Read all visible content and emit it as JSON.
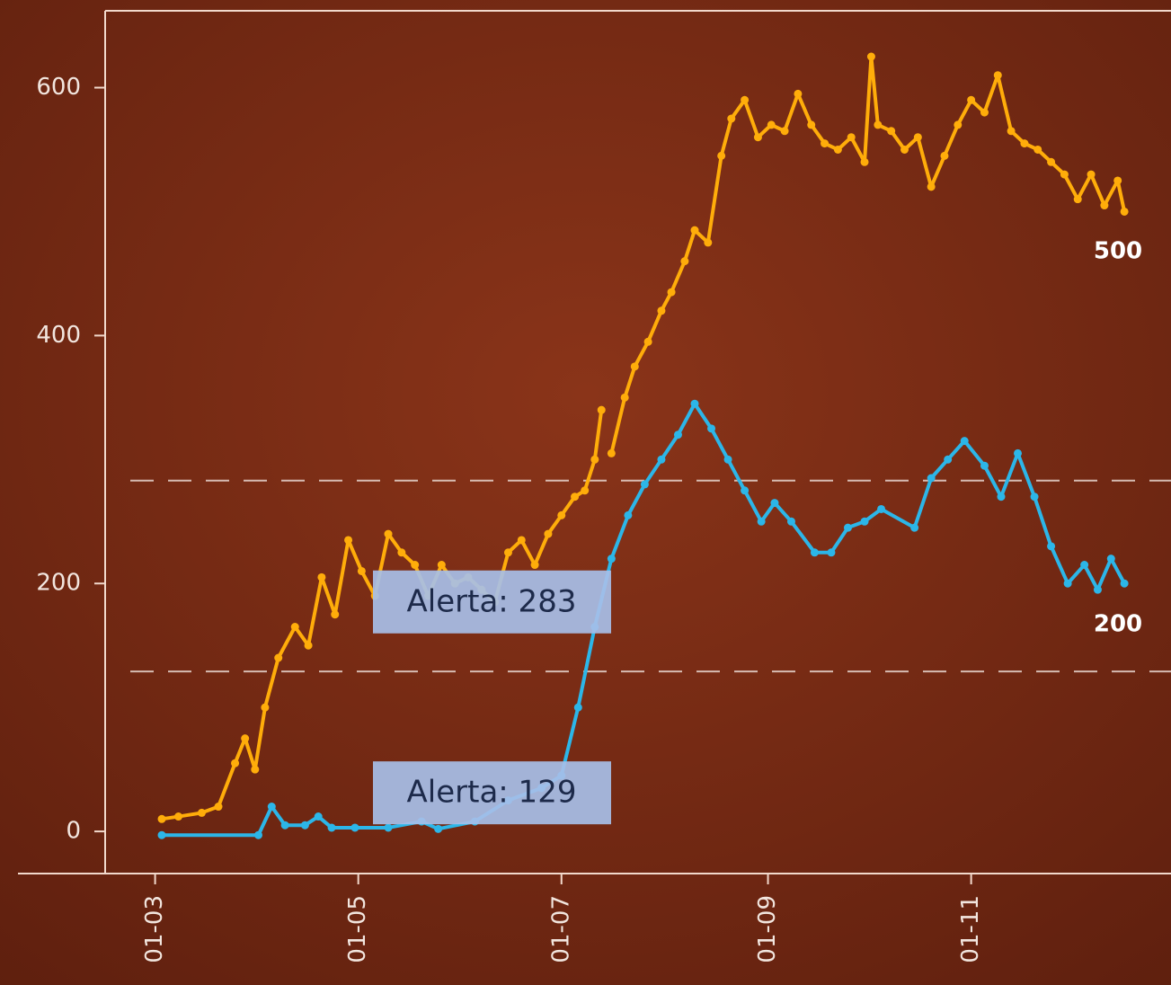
{
  "chart_data": {
    "type": "line",
    "xlim": [
      "14-02",
      "31-12"
    ],
    "xticks": [
      "01-03",
      "01-05",
      "01-07",
      "01-09",
      "01-11"
    ],
    "ylim": [
      -34,
      662
    ],
    "yticks": [
      0,
      200,
      400,
      600
    ],
    "hlines": [
      {
        "value": 283,
        "label": "Alerta: 283"
      },
      {
        "value": 129,
        "label": "Alerta: 129"
      }
    ],
    "annotations": [
      "500",
      "200"
    ],
    "series": [
      {
        "color": "#ffad0a",
        "x": [
          "03-03",
          "08-03",
          "15-03",
          "20-03",
          "25-03",
          "28-03",
          "31-03",
          "03-04",
          "07-04",
          "12-04",
          "16-04",
          "20-04",
          "24-04",
          "28-04",
          "02-05",
          "06-05",
          "10-05",
          "14-05",
          "18-05",
          "22-05",
          "26-05",
          "30-05",
          "03-06",
          "07-06",
          "11-06",
          "15-06",
          "19-06",
          "23-06",
          "27-06",
          "01-07",
          "05-07",
          "08-07",
          "11-07",
          "13-07",
          "14-07",
          "16-07",
          "20-07",
          "23-07",
          "27-07",
          "31-07",
          "03-08",
          "07-08",
          "10-08",
          "14-08",
          "18-08",
          "21-08",
          "25-08",
          "29-08",
          "02-09",
          "06-09",
          "10-09",
          "14-09",
          "18-09",
          "22-09",
          "26-09",
          "30-09",
          "02-10",
          "04-10",
          "08-10",
          "12-10",
          "16-10",
          "20-10",
          "24-10",
          "28-10",
          "01-11",
          "05-11",
          "09-11",
          "13-11",
          "17-11",
          "21-11",
          "25-11",
          "29-11",
          "03-12",
          "07-12",
          "11-12",
          "15-12",
          "17-12"
        ],
        "values": [
          10,
          12,
          15,
          20,
          55,
          75,
          50,
          100,
          140,
          165,
          150,
          205,
          175,
          235,
          210,
          190,
          240,
          225,
          215,
          190,
          215,
          200,
          205,
          195,
          185,
          225,
          235,
          215,
          240,
          255,
          270,
          275,
          300,
          340,
          null,
          305,
          350,
          375,
          395,
          420,
          435,
          460,
          485,
          475,
          545,
          575,
          590,
          560,
          570,
          565,
          595,
          570,
          555,
          550,
          560,
          540,
          625,
          570,
          565,
          550,
          560,
          520,
          545,
          570,
          590,
          580,
          610,
          565,
          555,
          550,
          540,
          530,
          510,
          530,
          505,
          525,
          500
        ]
      },
      {
        "color": "#2cb6e8",
        "x": [
          "03-03",
          "01-04",
          "05-04",
          "09-04",
          "15-04",
          "19-04",
          "23-04",
          "30-04",
          "10-05",
          "20-05",
          "25-05",
          "05-06",
          "15-06",
          "25-06",
          "01-07",
          "06-07",
          "11-07",
          "16-07",
          "21-07",
          "26-07",
          "31-07",
          "05-08",
          "10-08",
          "15-08",
          "20-08",
          "25-08",
          "30-08",
          "03-09",
          "08-09",
          "15-09",
          "20-09",
          "25-09",
          "30-09",
          "05-10",
          "15-10",
          "20-10",
          "25-10",
          "30-10",
          "05-11",
          "10-11",
          "15-11",
          "20-11",
          "25-11",
          "30-11",
          "05-12",
          "09-12",
          "13-12",
          "17-12"
        ],
        "values": [
          -3,
          -3,
          20,
          5,
          5,
          12,
          3,
          3,
          3,
          8,
          2,
          8,
          25,
          35,
          45,
          100,
          165,
          220,
          255,
          280,
          300,
          320,
          345,
          325,
          300,
          275,
          250,
          265,
          250,
          225,
          225,
          245,
          250,
          260,
          245,
          285,
          300,
          315,
          295,
          270,
          305,
          270,
          230,
          200,
          215,
          195,
          220,
          200
        ]
      }
    ]
  }
}
